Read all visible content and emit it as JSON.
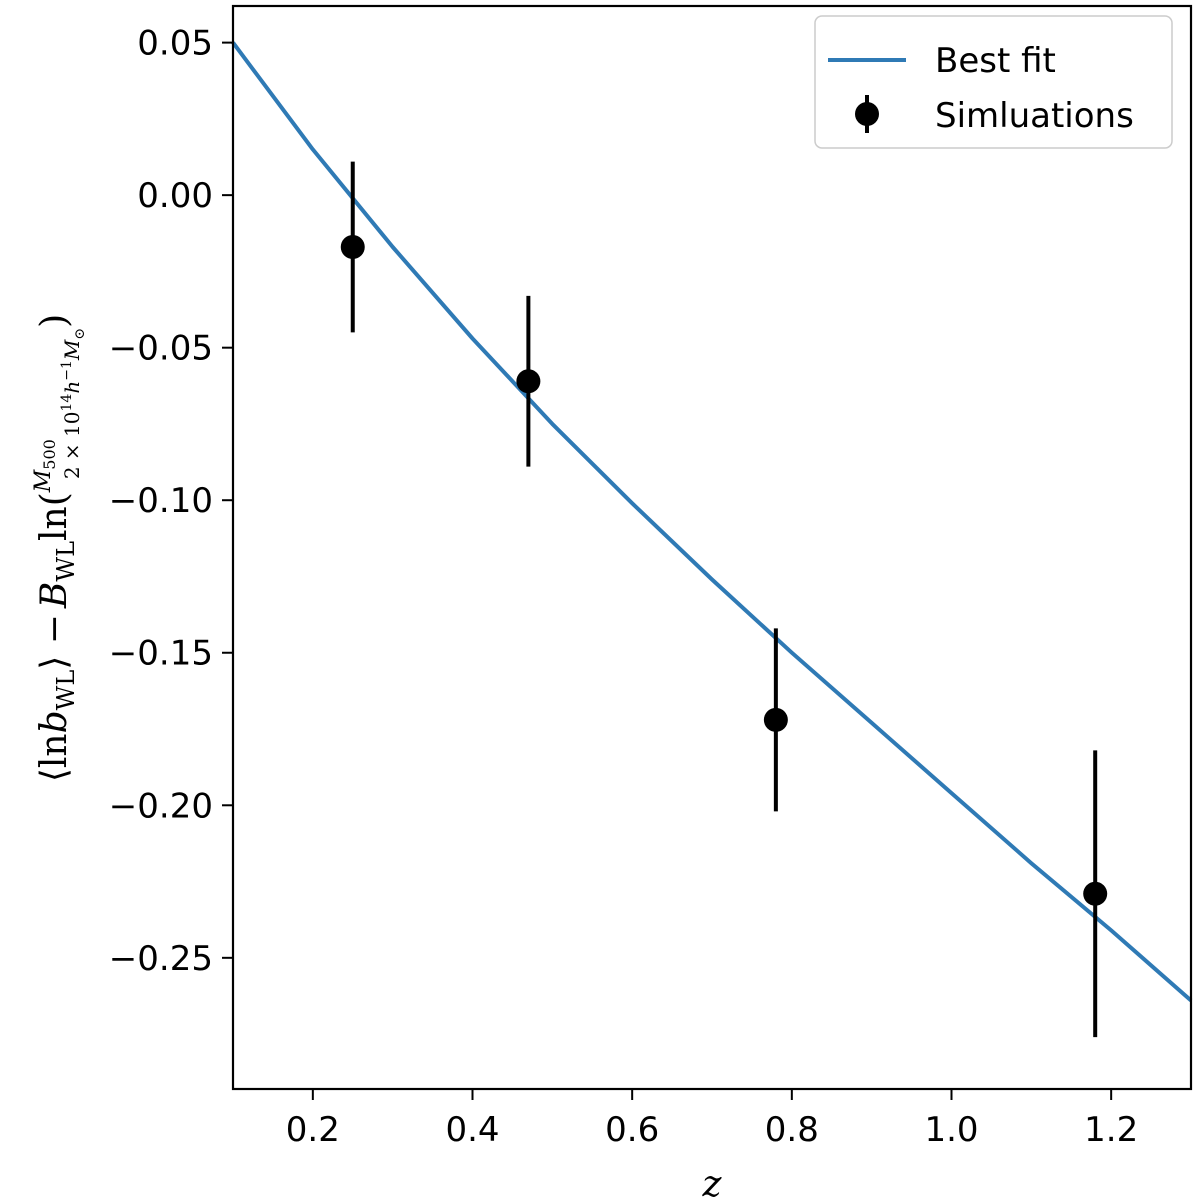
{
  "chart_data": {
    "type": "line",
    "title": "",
    "xlabel": "z",
    "ylabel": "⟨ln b_WL⟩ − B_WL ln(M_500 / (2 × 10^14 h^−1 M_⊙))",
    "ylabel_parts": {
      "lhs": "⟨ln",
      "b": "b",
      "b_sub": "WL",
      "rangle": "⟩ −",
      "B": "B",
      "B_sub": "WL",
      "ln": "ln(",
      "numerator": "M",
      "numerator_sub": "500",
      "denominator": "2 × 10",
      "denominator_exp": "14",
      "denominator_h": "h",
      "denominator_h_exp": "−1",
      "denominator_M": "M",
      "denominator_M_sub": "⊙",
      "close": ")"
    },
    "xlim": [
      0.1,
      1.3
    ],
    "ylim": [
      -0.293,
      0.062
    ],
    "xticks": [
      0.2,
      0.4,
      0.6,
      0.8,
      1.0,
      1.2
    ],
    "xtick_labels": [
      "0.2",
      "0.4",
      "0.6",
      "0.8",
      "1.0",
      "1.2"
    ],
    "yticks": [
      0.05,
      0.0,
      -0.05,
      -0.1,
      -0.15,
      -0.2,
      -0.25
    ],
    "ytick_labels": [
      "0.05",
      "0.00",
      "−0.05",
      "−0.10",
      "−0.15",
      "−0.20",
      "−0.25"
    ],
    "grid": false,
    "legend_position": "top-right",
    "series": [
      {
        "name": "Best fit",
        "kind": "line",
        "color": "#2f7ab5",
        "x": [
          0.1,
          0.2,
          0.3,
          0.4,
          0.5,
          0.6,
          0.7,
          0.8,
          0.9,
          1.0,
          1.1,
          1.2,
          1.3
        ],
        "y": [
          0.05,
          0.015,
          -0.017,
          -0.047,
          -0.075,
          -0.101,
          -0.126,
          -0.15,
          -0.173,
          -0.196,
          -0.219,
          -0.241,
          -0.264
        ]
      },
      {
        "name": "Simluations",
        "kind": "errorbar",
        "color": "#000000",
        "x": [
          0.25,
          0.47,
          0.78,
          1.18
        ],
        "y": [
          -0.017,
          -0.061,
          -0.172,
          -0.229
        ],
        "yerr": [
          0.028,
          0.028,
          0.03,
          0.047
        ]
      }
    ]
  }
}
